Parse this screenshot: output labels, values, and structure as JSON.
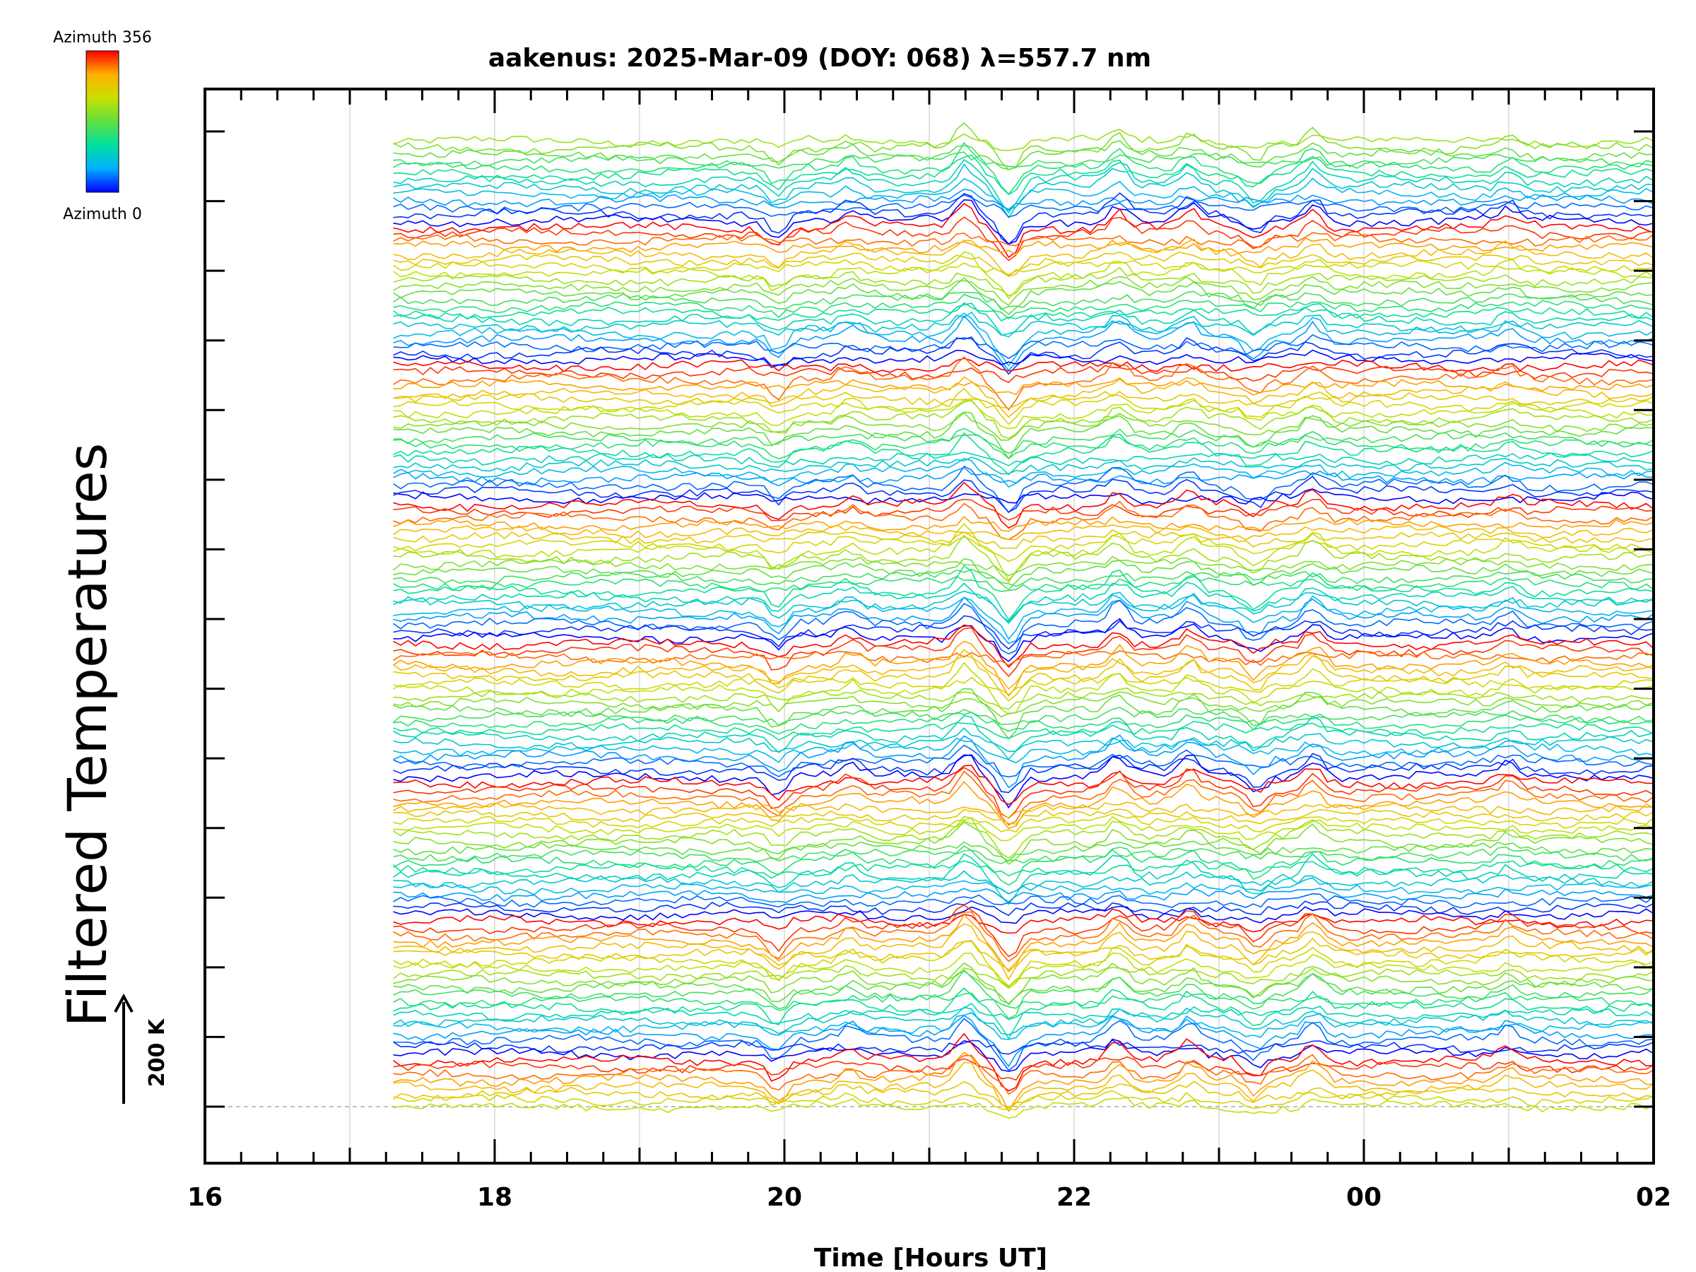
{
  "chart_data": {
    "type": "line",
    "title": "aakenus: 2025-Mar-09 (DOY: 068) λ=557.7 nm",
    "xlabel": "Time [Hours UT]",
    "ylabel": "Filtered Temperatures",
    "x_tick_labels": [
      "16",
      "18",
      "20",
      "22",
      "00",
      "02"
    ],
    "xlim_hours_ut": [
      16,
      26
    ],
    "data_start_hours_ut": 17.3,
    "data_end_hours_ut": 26,
    "colorbar": {
      "top_label": "Azimuth 356",
      "bottom_label": "Azimuth 0",
      "azimuth_range_deg": [
        0,
        356
      ],
      "colors": [
        "#0000ff",
        "#00b0ff",
        "#00e0a0",
        "#60e040",
        "#c8e000",
        "#ffb000",
        "#ff0000"
      ]
    },
    "scale_bar": {
      "label": "200 K",
      "value_k": 200
    },
    "stack_groups": 7,
    "traces_per_group": 21,
    "y_axis_tick_count": 15,
    "grid": "vertical lines at every hour",
    "common_events_hours_ut": [
      {
        "hour": 19.95,
        "amplitude": -1.0
      },
      {
        "hour": 20.45,
        "amplitude": 0.6
      },
      {
        "hour": 21.25,
        "amplitude": 1.3
      },
      {
        "hour": 21.55,
        "amplitude": -1.6
      },
      {
        "hour": 22.3,
        "amplitude": 1.0
      },
      {
        "hour": 22.8,
        "amplitude": 0.9
      },
      {
        "hour": 23.25,
        "amplitude": -0.9
      },
      {
        "hour": 23.65,
        "amplitude": 1.0
      },
      {
        "hour": 25.0,
        "amplitude": 0.6
      }
    ]
  }
}
